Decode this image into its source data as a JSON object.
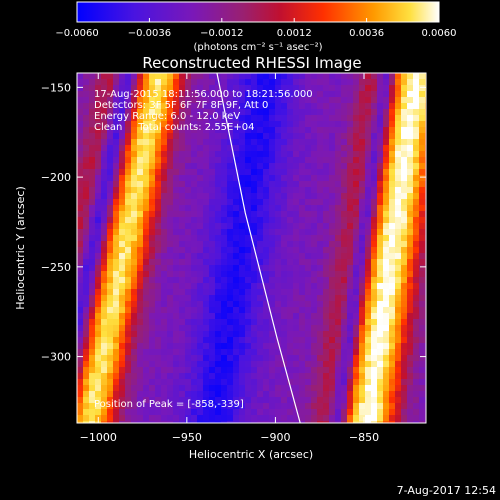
{
  "chart_data": {
    "type": "heatmap",
    "title": "Reconstructed RHESSI Image",
    "xlabel": "Heliocentric X (arcsec)",
    "ylabel": "Heliocentric Y (arcsec)",
    "xlim": [
      -1012,
      -815
    ],
    "ylim": [
      -337,
      -142
    ],
    "x_ticks": [
      -1000,
      -950,
      -900,
      -850
    ],
    "x_tick_labels": [
      "−1000",
      "−950",
      "−900",
      "−850"
    ],
    "y_ticks": [
      -150,
      -200,
      -250,
      -300
    ],
    "y_tick_labels": [
      "−150",
      "−200",
      "−250",
      "−300"
    ],
    "grid": false,
    "colorbar": {
      "min": -0.006,
      "max": 0.006,
      "ticks": [
        -0.006,
        -0.0036,
        -0.0012,
        0.0012,
        0.0036,
        0.006
      ],
      "tick_labels": [
        "−0.0060",
        "−0.0036",
        "−0.0012",
        "0.0012",
        "0.0036",
        "0.0060"
      ],
      "units_label": "(photons cm⁻² s⁻¹ asec⁻²)",
      "palette": [
        "#0000ff",
        "#6a10c8",
        "#9a2088",
        "#c0102a",
        "#ff2000",
        "#ff8c00",
        "#ffd000",
        "#ffffff"
      ]
    },
    "bands": [
      {
        "name": "bright-ridge-left",
        "x_top": -965,
        "x_bottom": -1005,
        "intensity": 0.0055
      },
      {
        "name": "bright-ridge-right",
        "x_top": -820,
        "x_bottom": -848,
        "intensity": 0.006
      },
      {
        "name": "dark-trough",
        "x_top": -905,
        "x_bottom": -935,
        "intensity": -0.006
      }
    ],
    "limb_line": [
      {
        "x": -933,
        "y": -142
      },
      {
        "x": -917,
        "y": -220
      },
      {
        "x": -899,
        "y": -290
      },
      {
        "x": -886,
        "y": -337
      }
    ],
    "annotations": [
      "17-Aug-2015 18:11:56.000 to 18:21:56.000",
      "Detectors: 3F 5F 6F 7F 8F 9F, Att 0",
      "Energy Range: 6.0 - 12.0 keV",
      "Clean     Total counts: 2.55E+04"
    ],
    "peak_label": "Position of Peak = [-858,-339]",
    "footer_date": "7-Aug-2017 12:54"
  }
}
